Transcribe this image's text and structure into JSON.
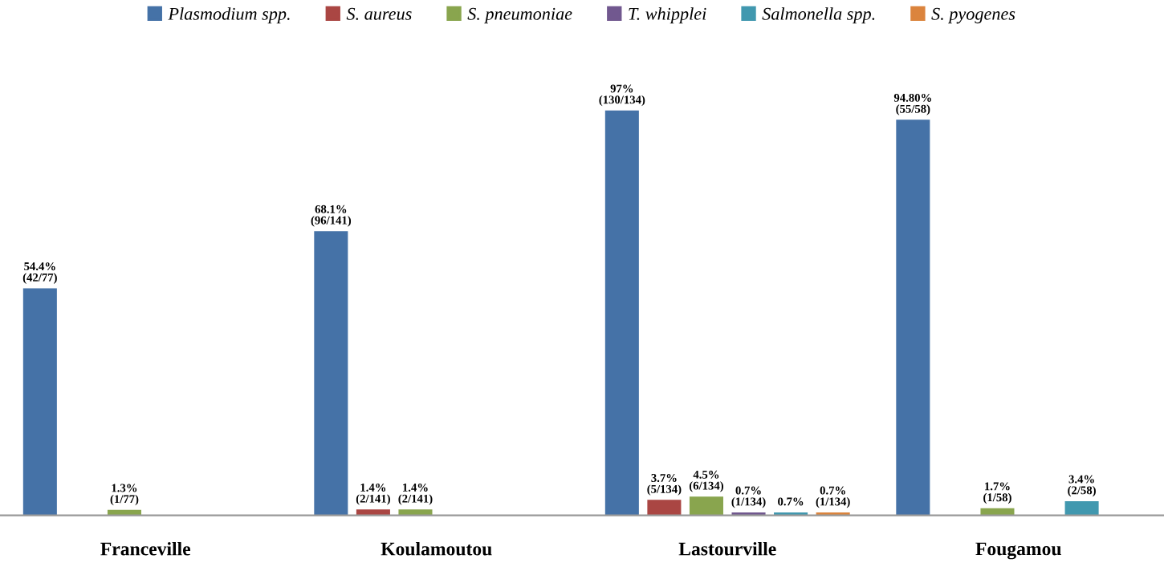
{
  "chart_data": {
    "type": "bar",
    "categories": [
      "Franceville",
      "Koulamoutou",
      "Lastourville",
      "Fougamou"
    ],
    "legend": "top",
    "series": [
      {
        "name": "Plasmodium spp.",
        "color": "#4572a7",
        "values": [
          54.4,
          68.1,
          97,
          94.8
        ],
        "value_labels": [
          "54.4%\n(42/77)",
          "68.1%\n(96/141)",
          "97%\n(130/134)",
          "94.80%\n(55/58)"
        ]
      },
      {
        "name": "S. aureus",
        "color": "#aa4643",
        "values": [
          null,
          1.4,
          3.7,
          null
        ],
        "value_labels": [
          null,
          "1.4%\n(2/141)",
          "3.7%\n(5/134)",
          null
        ]
      },
      {
        "name": "S. pneumoniae",
        "color": "#89a54e",
        "values": [
          1.3,
          1.4,
          4.5,
          1.7
        ],
        "value_labels": [
          "1.3%\n(1/77)",
          "1.4%\n(2/141)",
          "4.5%\n(6/134)",
          "1.7%\n(1/58)"
        ]
      },
      {
        "name": "T. whipplei",
        "color": "#71588f",
        "values": [
          null,
          null,
          0.7,
          null
        ],
        "value_labels": [
          null,
          null,
          "0.7%\n(1/134)",
          null
        ]
      },
      {
        "name": "Salmonella spp.",
        "color": "#4198af",
        "values": [
          null,
          null,
          0.7,
          3.4
        ],
        "value_labels": [
          null,
          null,
          "0.7%",
          "3.4%\n(2/58)"
        ]
      },
      {
        "name": "S. pyogenes",
        "color": "#db843d",
        "values": [
          null,
          null,
          0.7,
          null
        ],
        "value_labels": [
          null,
          null,
          "0.7%\n(1/134)",
          null
        ]
      }
    ]
  }
}
